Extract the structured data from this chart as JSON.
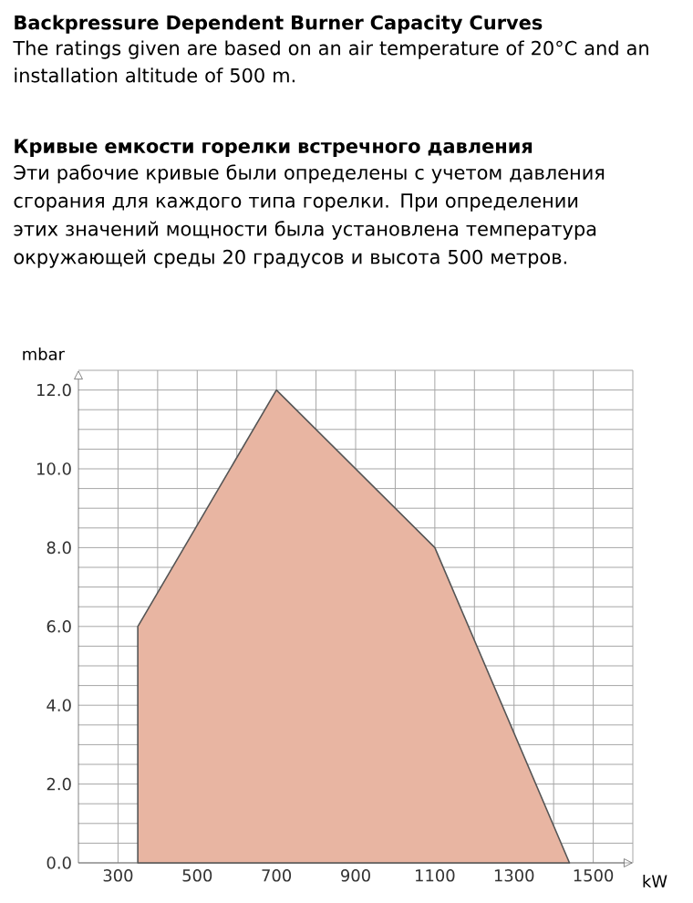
{
  "chart_data": {
    "type": "area",
    "title": "Backpressure Dependent Burner Capacity Curves",
    "subtitle": "The ratings given are based on an air temperature of 20°C and an installation altitude of 500 m.",
    "annotations": [
      "Кривые емкости горелки встречного давления",
      "Эти рабочие кривые были определены с учетом давления сгорания для каждого типа горелки. При определении этих значений мощности была установлена температура окружающей среды 20 градусов и высота 500 метров."
    ],
    "xlabel": "kW",
    "ylabel": "mbar",
    "x": [
      350,
      350,
      700,
      1100,
      1440
    ],
    "series": [
      {
        "color": "#e8b5a2",
        "values": [
          0,
          6,
          12,
          8,
          0
        ]
      }
    ],
    "xlim": [
      200,
      1600
    ],
    "ylim": [
      0,
      12.5
    ],
    "xticks": [
      300,
      500,
      700,
      900,
      1100,
      1300,
      1500
    ],
    "yticks": [
      {
        "value": 0,
        "label": "0.0"
      },
      {
        "value": 2,
        "label": "2.0"
      },
      {
        "value": 4,
        "label": "4.0"
      },
      {
        "value": 6,
        "label": "6.0"
      },
      {
        "value": 8,
        "label": "8.0"
      },
      {
        "value": 10,
        "label": "10.0"
      },
      {
        "value": 12,
        "label": "12.0"
      }
    ],
    "grid": true
  }
}
